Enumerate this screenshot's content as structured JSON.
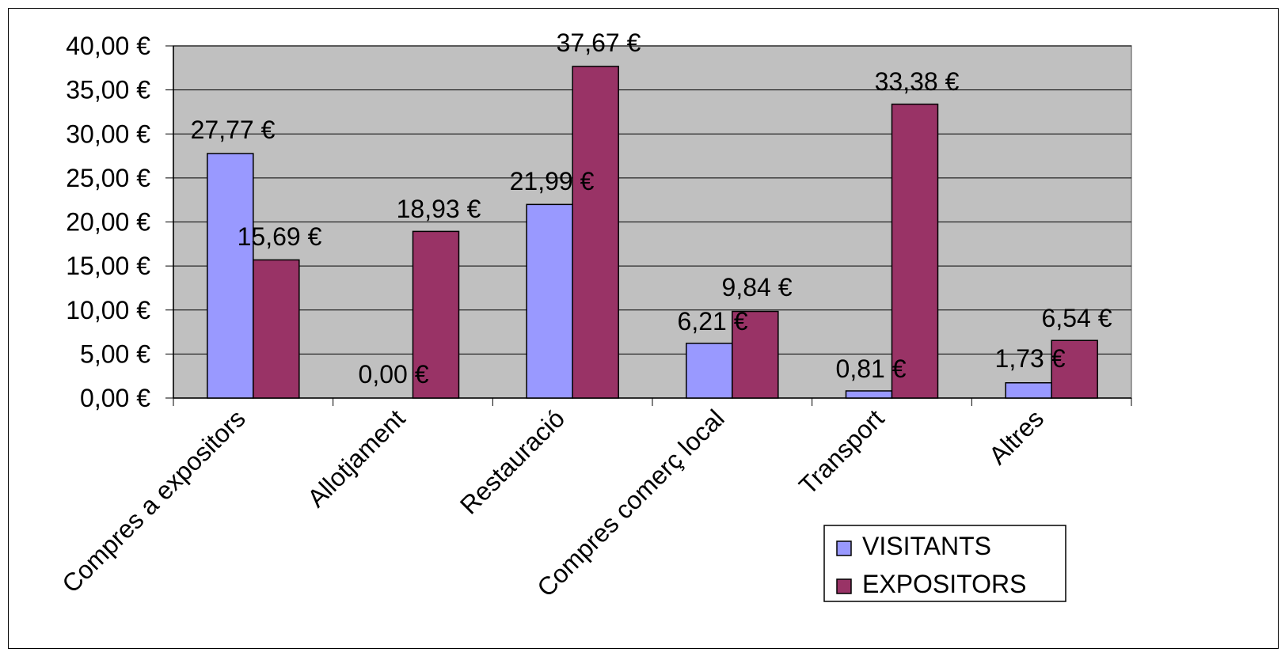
{
  "chart_data": {
    "type": "bar",
    "categories": [
      "Compres a expositors",
      "Allotjament",
      "Restauració",
      "Compres comerç local",
      "Transport",
      "Altres"
    ],
    "series": [
      {
        "name": "VISITANTS",
        "values": [
          27.77,
          0.0,
          21.99,
          6.21,
          0.81,
          1.73
        ],
        "labels": [
          "27,77 €",
          "0,00 €",
          "21,99 €",
          "6,21 €",
          "0,81 €",
          "1,73 €"
        ],
        "color": "#9999ff"
      },
      {
        "name": "EXPOSITORS",
        "values": [
          15.69,
          18.93,
          37.67,
          9.84,
          33.38,
          6.54
        ],
        "labels": [
          "15,69 €",
          "18,93 €",
          "37,67 €",
          "9,84 €",
          "33,38 €",
          "6,54 €"
        ],
        "color": "#993366"
      }
    ],
    "yticks": [
      "0,00 €",
      "5,00 €",
      "10,00 €",
      "15,00 €",
      "20,00 €",
      "25,00 €",
      "30,00 €",
      "35,00 €",
      "40,00 €"
    ],
    "ylim": [
      0,
      40
    ],
    "ytick_step": 5,
    "plot_background": "#c0c0c0",
    "grid": true,
    "legend_position": "bottom-right",
    "title": "",
    "xlabel": "",
    "ylabel": ""
  }
}
